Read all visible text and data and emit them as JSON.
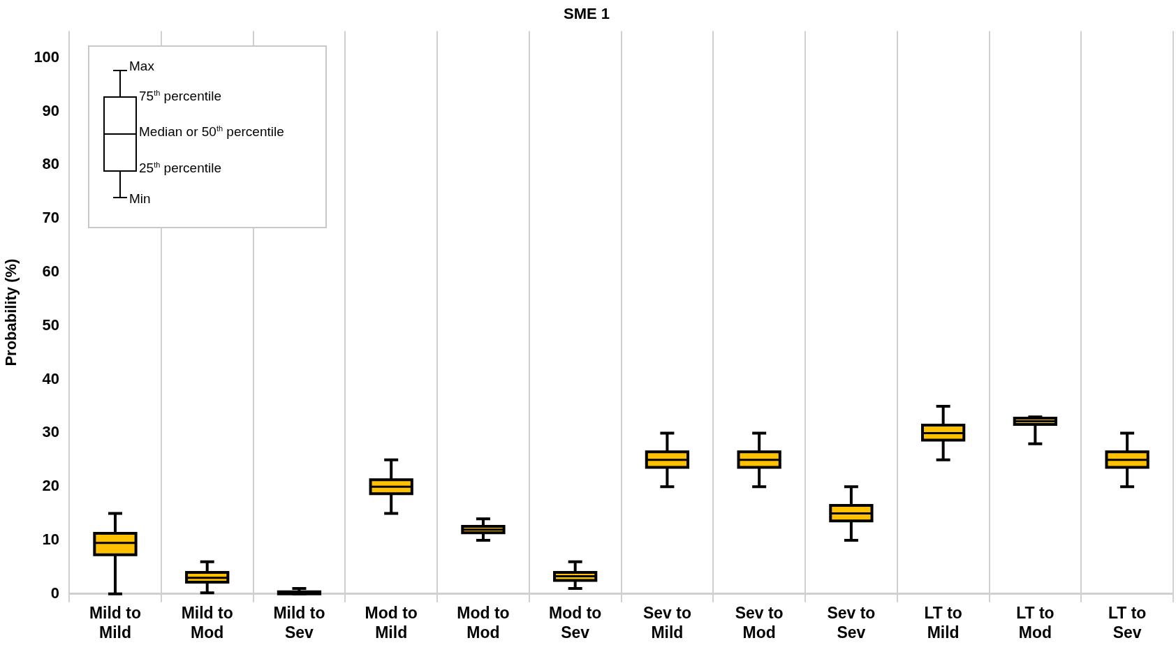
{
  "chart_data": {
    "type": "box",
    "title": "SME 1",
    "ylabel": "Probability (%)",
    "categories": [
      "Mild to Mild",
      "Mild to Mod",
      "Mild to Sev",
      "Mod to Mild",
      "Mod to Mod",
      "Mod to Sev",
      "Sev to Mild",
      "Sev to Mod",
      "Sev to Sev",
      "LT to Mild",
      "LT to Mod",
      "LT to Sev"
    ],
    "color": "#ffc000",
    "boxes": [
      {
        "low": 0,
        "q1": 7.3,
        "median": 9.5,
        "q3": 11.3,
        "high": 15
      },
      {
        "low": 0.2,
        "q1": 2.2,
        "median": 3,
        "q3": 4,
        "high": 6
      },
      {
        "low": 0,
        "q1": 0,
        "median": 0.2,
        "q3": 0.4,
        "high": 1
      },
      {
        "low": 15,
        "q1": 18.7,
        "median": 20,
        "q3": 21.3,
        "high": 25
      },
      {
        "low": 10,
        "q1": 11.4,
        "median": 12,
        "q3": 12.6,
        "high": 14
      },
      {
        "low": 1,
        "q1": 2.5,
        "median": 3.3,
        "q3": 4,
        "high": 6
      },
      {
        "low": 20,
        "q1": 23.6,
        "median": 25,
        "q3": 26.5,
        "high": 30
      },
      {
        "low": 20,
        "q1": 23.6,
        "median": 25,
        "q3": 26.5,
        "high": 30
      },
      {
        "low": 10,
        "q1": 13.6,
        "median": 15,
        "q3": 16.5,
        "high": 20
      },
      {
        "low": 25,
        "q1": 28.7,
        "median": 30,
        "q3": 31.5,
        "high": 35
      },
      {
        "low": 28,
        "q1": 31.6,
        "median": 32.2,
        "q3": 32.8,
        "high": 33
      },
      {
        "low": 20,
        "q1": 23.6,
        "median": 25,
        "q3": 26.5,
        "high": 30
      }
    ],
    "ylim": [
      0,
      105
    ],
    "yticks": [
      0,
      10,
      20,
      30,
      40,
      50,
      60,
      70,
      80,
      90,
      100
    ],
    "grid": "x",
    "legend": false,
    "annotations": [
      "Max",
      "75$^{th}$ percentile",
      "Median or 50$^{th}$ percentile",
      "25$^{th}$ percentile",
      "Min"
    ]
  }
}
